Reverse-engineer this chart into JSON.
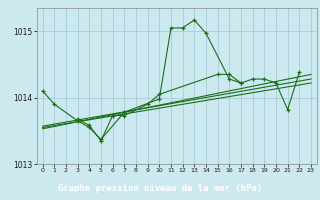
{
  "title": "Graphe pression niveau de la mer (hPa)",
  "background_color": "#cce9f0",
  "plot_bg": "#cce9f0",
  "grid_color": "#aaccd6",
  "line_color": "#1a6e1a",
  "label_bg": "#2a6e2a",
  "label_fg": "#ffffff",
  "series1": [
    1014.1,
    1013.9,
    null,
    1013.65,
    1013.55,
    1013.37,
    null,
    1013.78,
    null,
    null,
    1013.98,
    1015.05,
    1015.05,
    1015.17,
    1014.97,
    null,
    1014.28,
    1014.22,
    null,
    null,
    null,
    null,
    null,
    null
  ],
  "series2": [
    null,
    null,
    null,
    1013.68,
    1013.58,
    1013.35,
    1013.73,
    1013.73,
    null,
    1013.9,
    1014.05,
    null,
    null,
    null,
    null,
    1014.35,
    1014.35,
    1014.22,
    1014.28,
    1014.28,
    1014.22,
    1013.82,
    1014.38,
    null
  ],
  "trend1_x": [
    0,
    23
  ],
  "trend1_y": [
    1013.55,
    1014.22
  ],
  "trend2_x": [
    0,
    23
  ],
  "trend2_y": [
    1013.57,
    1014.28
  ],
  "trend3_x": [
    0,
    23
  ],
  "trend3_y": [
    1013.53,
    1014.35
  ],
  "ylim": [
    1013.0,
    1015.35
  ],
  "yticks": [
    1013,
    1014,
    1015
  ],
  "xticks": [
    0,
    1,
    2,
    3,
    4,
    5,
    6,
    7,
    8,
    9,
    10,
    11,
    12,
    13,
    14,
    15,
    16,
    17,
    18,
    19,
    20,
    21,
    22,
    23
  ]
}
